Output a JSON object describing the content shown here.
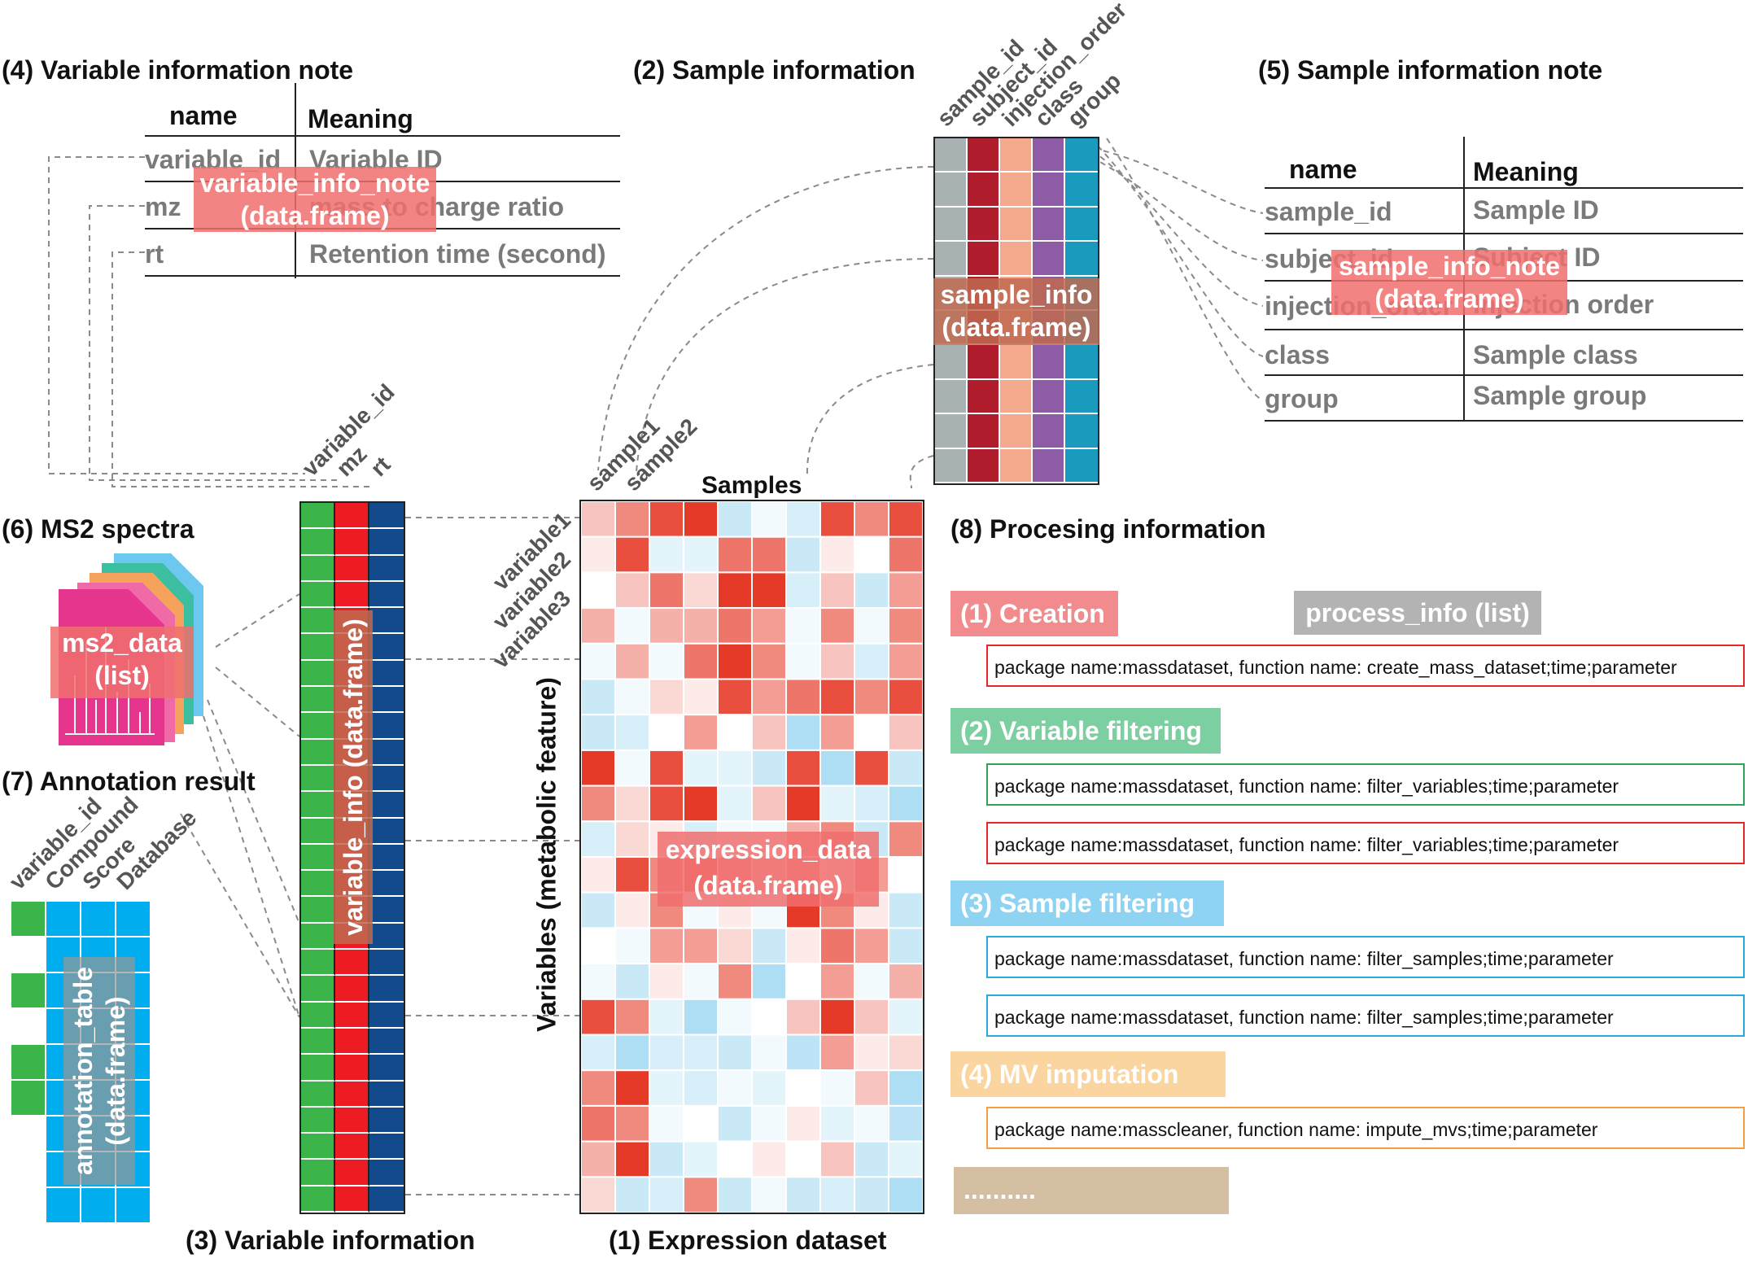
{
  "titles": {
    "var_note": "(4) Variable information note",
    "sample_info": "(2) Sample information",
    "sample_note": "(5) Sample information note",
    "ms2": "(6) MS2 spectra",
    "annotation": "(7) Annotation result",
    "var_info": "(3) Variable information",
    "expression": "(1) Expression dataset",
    "processing": "(8) Procesing information"
  },
  "var_note_table": {
    "head_name": "name",
    "head_meaning": "Meaning",
    "rows": [
      {
        "name": "variable_id",
        "meaning": "Variable ID"
      },
      {
        "name": "mz",
        "meaning": "mass to charge ratio"
      },
      {
        "name": "rt",
        "meaning": "Retention time (second)"
      }
    ],
    "badge": [
      "variable_info_note",
      "(data.frame)"
    ]
  },
  "sample_note_table": {
    "head_name": "name",
    "head_meaning": "Meaning",
    "rows": [
      {
        "name": "sample_id",
        "meaning": "Sample ID"
      },
      {
        "name": "subject_id",
        "meaning": "Subject ID"
      },
      {
        "name": "injection_order",
        "meaning": "Injection order"
      },
      {
        "name": "class",
        "meaning": "Sample class"
      },
      {
        "name": "group",
        "meaning": "Sample group"
      }
    ],
    "badge": [
      "sample_info_note",
      "(data.frame)"
    ]
  },
  "sample_info": {
    "columns": [
      "sample_id",
      "subject_id",
      "injection_order",
      "class",
      "group"
    ],
    "badge": [
      "sample_info",
      "(data.frame)"
    ]
  },
  "variable_info": {
    "columns": [
      "variable_id",
      "mz",
      "rt"
    ],
    "badge": "variable_info (data.frame)"
  },
  "expression": {
    "samples_label": "Samples",
    "variables_label": "Variables (metabolic feature)",
    "sample_labels": [
      "sample1",
      "sample2"
    ],
    "variable_labels": [
      "variable1",
      "variable2",
      "variable3"
    ],
    "badge": [
      "expression_data",
      "(data.frame)"
    ]
  },
  "ms2": {
    "badge": [
      "ms2_data",
      "(list)"
    ]
  },
  "annotation": {
    "columns": [
      "variable_id",
      "Compound",
      "Score",
      "Database"
    ],
    "badge": [
      "annotation_table",
      "(data.frame)"
    ]
  },
  "processing": {
    "list_badge": "process_info (list)",
    "steps": [
      {
        "label": "(1) Creation",
        "color": "#f28b8e",
        "boxes": [
          {
            "text": "package name:massdataset, function name: create_mass_dataset;time;parameter",
            "border": "#e8262a"
          }
        ]
      },
      {
        "label": "(2) Variable filtering",
        "color": "#7ccfa0",
        "boxes": [
          {
            "text": "package name:massdataset, function name: filter_variables;time;parameter",
            "border": "#2ea35a"
          },
          {
            "text": "package name:massdataset, function name: filter_variables;time;parameter",
            "border": "#e8262a"
          }
        ]
      },
      {
        "label": "(3) Sample filtering",
        "color": "#8fd3f2",
        "boxes": [
          {
            "text": "package name:massdataset, function name: filter_samples;time;parameter",
            "border": "#2aa9dc"
          },
          {
            "text": "package name:massdataset, function name: filter_samples;time;parameter",
            "border": "#2aa9dc"
          }
        ]
      },
      {
        "label": "(4) MV imputation",
        "color": "#fad5a0",
        "boxes": [
          {
            "text": "package name:masscleaner, function name: impute_mvs;time;parameter",
            "border": "#f0a040"
          }
        ]
      }
    ],
    "ellipsis": "..........",
    "ellipsis_color": "#d5bfa3"
  },
  "colors": {
    "red_dark": "#b01e2e",
    "salmon": "#f5a98c",
    "purple": "#8e5ba6",
    "teal": "#1a9bbd",
    "gray_col": "#a9b2b2",
    "green": "#3bb54a",
    "red": "#ed1c24",
    "navy": "#124a8c",
    "annot_blue": "#00aeef",
    "badge_red": "#f07c7c",
    "badge_brown": "#c06a50",
    "badge_gray": "#b3b3b3"
  },
  "heatmap": {
    "cols": 10,
    "rows": 20,
    "values": [
      [
        0.3,
        0.6,
        0.9,
        1.0,
        -0.4,
        -0.1,
        -0.3,
        0.9,
        0.6,
        0.9
      ],
      [
        0.1,
        0.9,
        -0.2,
        -0.2,
        0.7,
        0.7,
        -0.4,
        0.1,
        0.0,
        0.7
      ],
      [
        0.0,
        0.3,
        0.7,
        0.2,
        1.0,
        1.0,
        -0.3,
        0.3,
        -0.4,
        0.5
      ],
      [
        0.4,
        -0.1,
        0.4,
        0.4,
        0.7,
        0.5,
        -0.1,
        0.6,
        -0.1,
        0.6
      ],
      [
        -0.1,
        0.4,
        -0.1,
        0.7,
        1.0,
        0.6,
        -0.1,
        0.3,
        -0.3,
        0.5
      ],
      [
        -0.4,
        -0.1,
        0.2,
        0.1,
        0.9,
        0.5,
        0.7,
        0.9,
        0.6,
        0.9
      ],
      [
        -0.4,
        -0.3,
        0.0,
        0.5,
        0.0,
        0.3,
        -0.6,
        0.5,
        0.0,
        0.3
      ],
      [
        1.0,
        -0.1,
        0.9,
        -0.2,
        -0.2,
        -0.4,
        0.9,
        -0.6,
        0.9,
        -0.4
      ],
      [
        0.6,
        0.2,
        0.9,
        1.0,
        -0.2,
        0.3,
        1.0,
        -0.2,
        -0.3,
        -0.6
      ],
      [
        -0.3,
        0.2,
        0.1,
        -0.3,
        -0.1,
        -0.1,
        0.4,
        0.6,
        -0.4,
        0.6
      ],
      [
        0.1,
        0.9,
        0.6,
        0.7,
        0.5,
        0.3,
        0.5,
        0.1,
        0.5,
        0.0
      ],
      [
        -0.4,
        0.1,
        0.6,
        -0.1,
        0.1,
        -0.1,
        1.0,
        0.6,
        0.1,
        -0.4
      ],
      [
        0.0,
        -0.1,
        0.5,
        0.5,
        0.2,
        -0.4,
        0.1,
        0.7,
        0.5,
        -0.4
      ],
      [
        -0.1,
        -0.4,
        0.1,
        -0.1,
        0.6,
        -0.6,
        0.0,
        0.5,
        -0.1,
        0.4
      ],
      [
        0.9,
        0.6,
        -0.2,
        -0.6,
        -0.1,
        0.0,
        0.3,
        1.0,
        0.3,
        -0.2
      ],
      [
        -0.3,
        -0.6,
        -0.3,
        -0.3,
        -0.4,
        -0.1,
        -0.5,
        0.5,
        0.1,
        0.2
      ],
      [
        0.6,
        1.0,
        -0.2,
        -0.3,
        -0.1,
        -0.2,
        0.0,
        -0.1,
        0.3,
        -0.6
      ],
      [
        0.7,
        0.6,
        -0.1,
        0.0,
        -0.4,
        -0.1,
        0.1,
        -0.2,
        -0.1,
        -0.5
      ],
      [
        0.4,
        1.0,
        -0.4,
        -0.2,
        0.0,
        0.1,
        0.0,
        0.3,
        -0.4,
        -0.2
      ],
      [
        0.2,
        -0.4,
        -0.3,
        0.6,
        -0.4,
        -0.1,
        -0.4,
        -0.3,
        -0.4,
        -0.6
      ]
    ]
  }
}
